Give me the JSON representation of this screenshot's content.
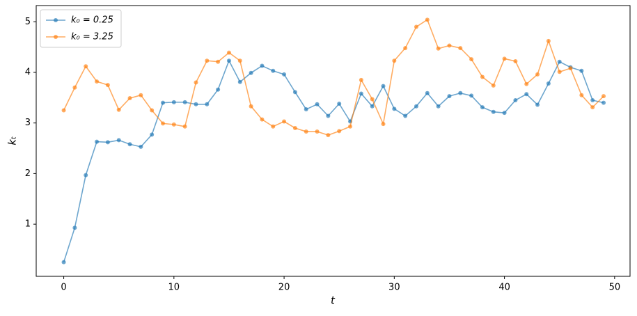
{
  "chart_data": {
    "type": "line",
    "xlabel": "t",
    "ylabel": "kₜ",
    "x": [
      0,
      1,
      2,
      3,
      4,
      5,
      6,
      7,
      8,
      9,
      10,
      11,
      12,
      13,
      14,
      15,
      16,
      17,
      18,
      19,
      20,
      21,
      22,
      23,
      24,
      25,
      26,
      27,
      28,
      29,
      30,
      31,
      32,
      33,
      34,
      35,
      36,
      37,
      38,
      39,
      40,
      41,
      42,
      43,
      44,
      45,
      46,
      47,
      48,
      49
    ],
    "series": [
      {
        "name": "k₀ = 0.25",
        "color": "#1f77b4",
        "values": [
          0.25,
          0.93,
          1.97,
          2.63,
          2.62,
          2.66,
          2.58,
          2.53,
          2.77,
          3.4,
          3.41,
          3.41,
          3.37,
          3.37,
          3.66,
          4.23,
          3.81,
          3.99,
          4.13,
          4.03,
          3.96,
          3.61,
          3.27,
          3.37,
          3.14,
          3.38,
          3.03,
          3.58,
          3.33,
          3.73,
          3.28,
          3.14,
          3.33,
          3.59,
          3.33,
          3.53,
          3.59,
          3.54,
          3.31,
          3.22,
          3.2,
          3.45,
          3.57,
          3.36,
          3.78,
          4.21,
          4.1,
          4.03,
          3.45,
          3.4
        ]
      },
      {
        "name": "k₀ = 3.25",
        "color": "#ff7f0e",
        "values": [
          3.25,
          3.7,
          4.12,
          3.82,
          3.75,
          3.26,
          3.49,
          3.55,
          3.25,
          2.99,
          2.97,
          2.93,
          3.8,
          4.23,
          4.21,
          4.39,
          4.23,
          3.33,
          3.07,
          2.93,
          3.03,
          2.9,
          2.83,
          2.83,
          2.76,
          2.84,
          2.93,
          3.85,
          3.47,
          2.98,
          4.23,
          4.48,
          4.9,
          5.04,
          4.47,
          4.53,
          4.48,
          4.26,
          3.91,
          3.74,
          4.27,
          4.22,
          3.77,
          3.96,
          4.62,
          4.01,
          4.08,
          3.55,
          3.31,
          3.53
        ]
      }
    ],
    "xlim": [
      -2.5,
      51.4
    ],
    "ylim": [
      -0.03,
      5.32
    ],
    "xticks": [
      0,
      10,
      20,
      30,
      40,
      50
    ],
    "yticks": [
      1,
      2,
      3,
      4,
      5
    ],
    "grid": false,
    "legend": "upper left"
  }
}
